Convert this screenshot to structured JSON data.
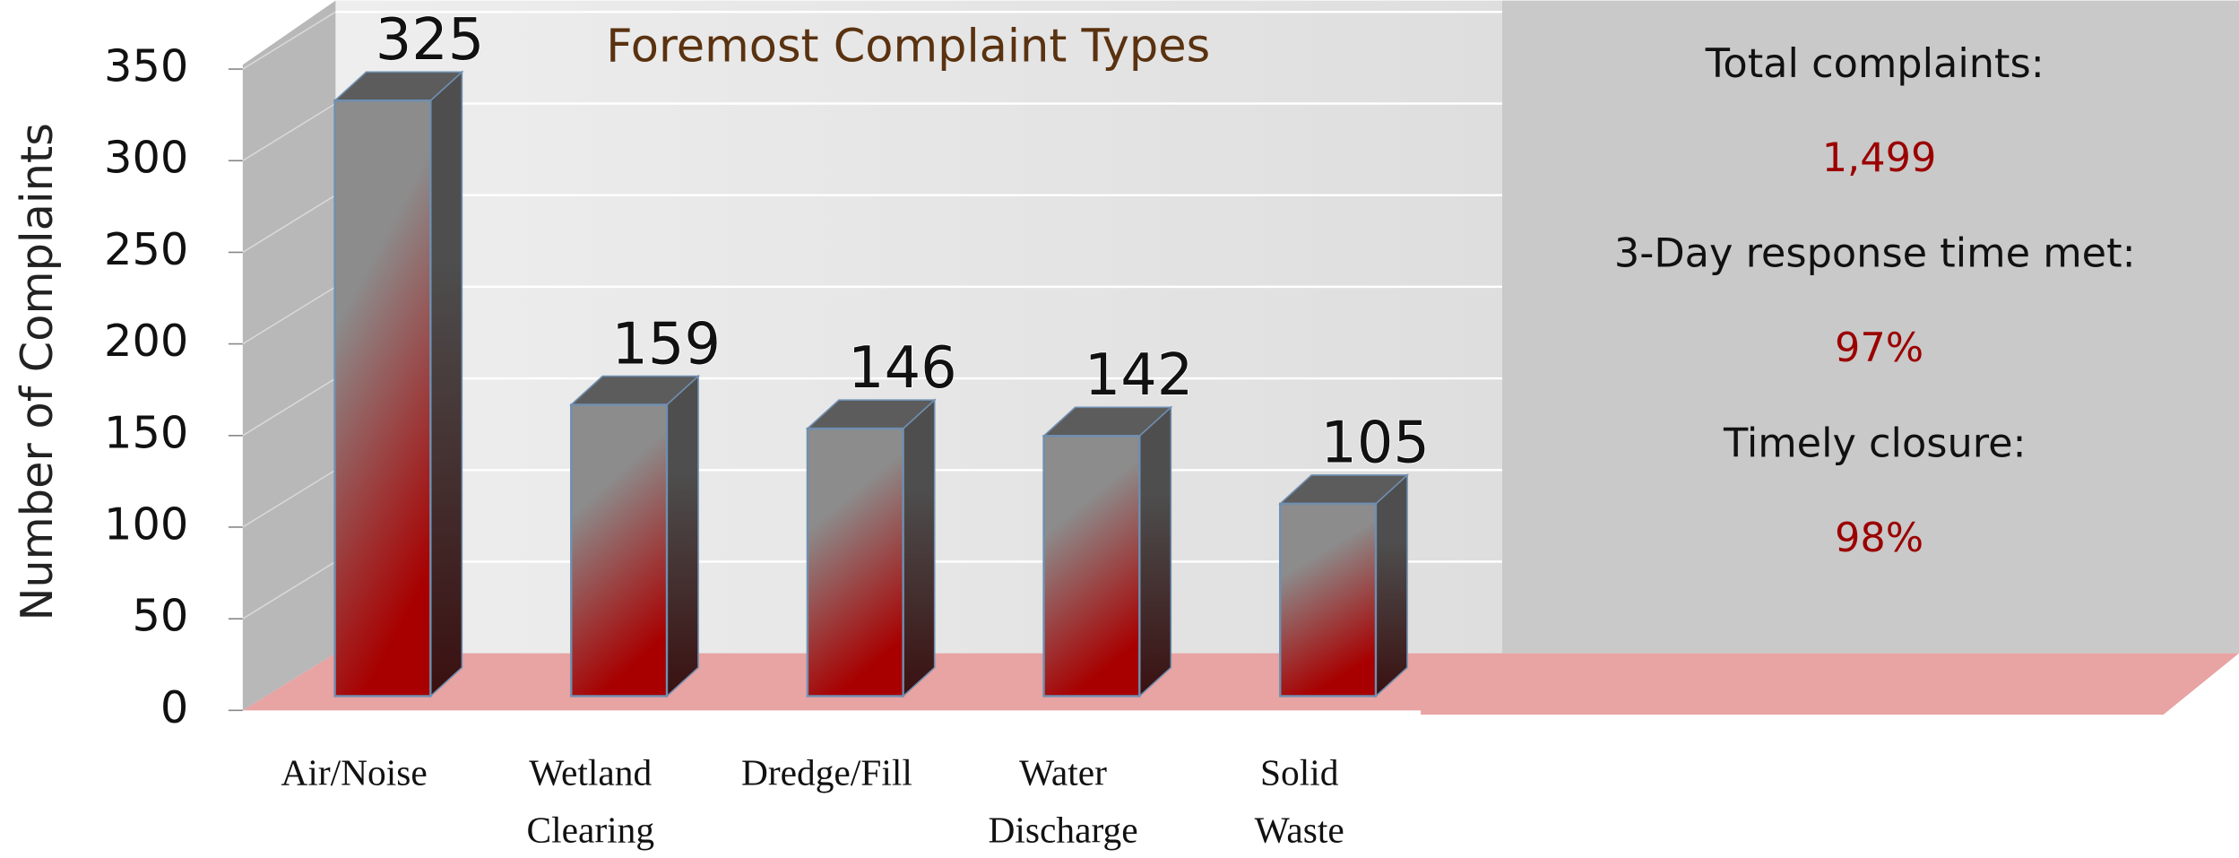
{
  "chart_data": {
    "type": "bar3d",
    "title": "Foremost Complaint Types",
    "y_label": "Number of Complaints",
    "categories": [
      "Air/Noise",
      "Wetland Clearing",
      "Dredge/Fill",
      "Water Discharge",
      "Solid Waste"
    ],
    "values": [
      325,
      159,
      146,
      142,
      105
    ],
    "ylim": [
      0,
      350
    ],
    "yticks": [
      0,
      50,
      100,
      150,
      200,
      250,
      300,
      350
    ],
    "grid": true,
    "stats": [
      {
        "label": "Total complaints:",
        "value": "1,499"
      },
      {
        "label": "3-Day response time met:",
        "value": "97%"
      },
      {
        "label": "Timely closure:",
        "value": "98%"
      }
    ]
  }
}
